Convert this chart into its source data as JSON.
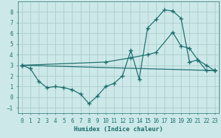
{
  "xlabel": "Humidex (Indice chaleur)",
  "bg_color": "#cce8e8",
  "grid_color": "#aacccc",
  "line_color": "#1a6b6b",
  "ylim": [
    -1.5,
    9.0
  ],
  "xlim": [
    -0.5,
    23.5
  ],
  "yticks": [
    -1,
    0,
    1,
    2,
    3,
    4,
    5,
    6,
    7,
    8
  ],
  "xticks": [
    0,
    1,
    2,
    3,
    4,
    5,
    6,
    7,
    8,
    9,
    10,
    11,
    12,
    13,
    14,
    15,
    16,
    17,
    18,
    19,
    20,
    21,
    22,
    23
  ],
  "line1_x": [
    0,
    1,
    2,
    3,
    4,
    5,
    6,
    7,
    8,
    9,
    10,
    11,
    12,
    13,
    14,
    15,
    16,
    17,
    18,
    19,
    20,
    21,
    22,
    23
  ],
  "line1_y": [
    3.0,
    2.7,
    1.5,
    0.9,
    1.0,
    0.9,
    0.7,
    0.3,
    -0.6,
    0.1,
    1.0,
    1.3,
    2.0,
    4.4,
    1.7,
    6.5,
    7.3,
    8.2,
    8.1,
    7.4,
    3.3,
    3.5,
    3.0,
    2.5
  ],
  "line2_x": [
    0,
    23
  ],
  "line2_y": [
    3.0,
    2.5
  ],
  "line3_x": [
    0,
    10,
    13,
    15,
    16,
    18,
    19,
    20,
    21,
    22,
    23
  ],
  "line3_y": [
    3.0,
    3.3,
    3.7,
    4.0,
    4.2,
    6.1,
    4.8,
    4.6,
    3.5,
    2.5,
    2.5
  ]
}
